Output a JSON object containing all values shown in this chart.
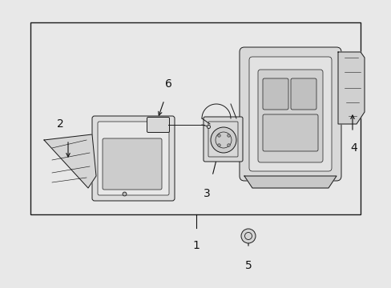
{
  "bg_color": "#e8e8e8",
  "box_bg": "#e0e0e0",
  "line_color": "#1a1a1a",
  "fig_w": 4.89,
  "fig_h": 3.6,
  "dpi": 100
}
